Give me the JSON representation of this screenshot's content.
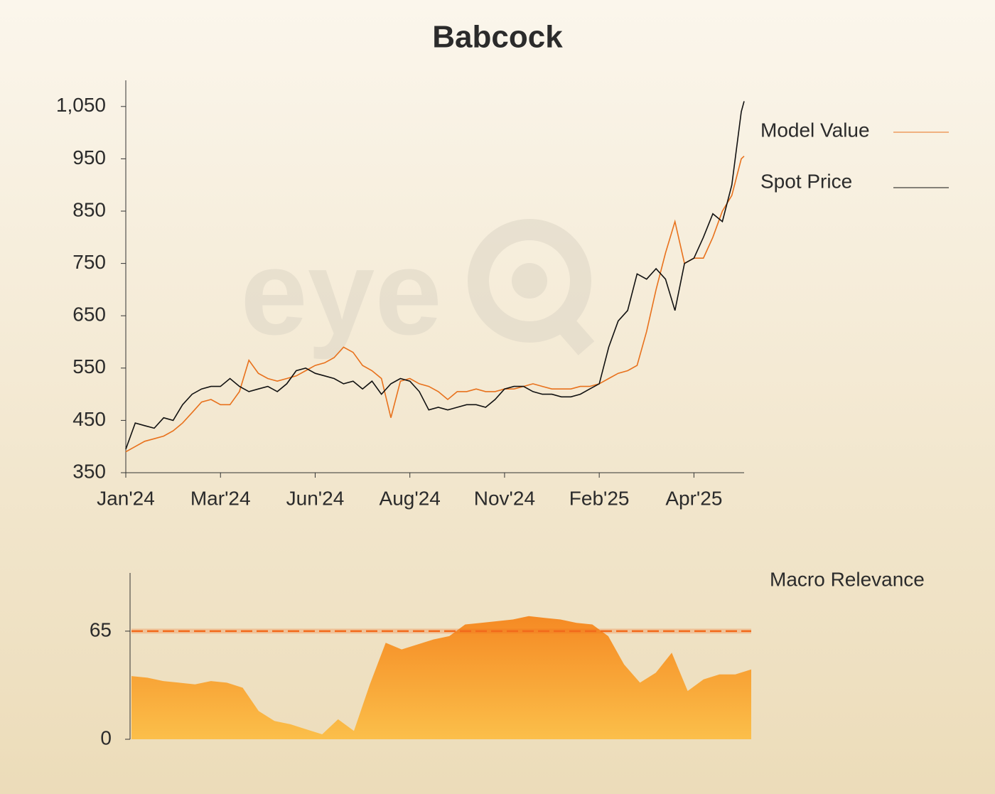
{
  "chart_data": [
    {
      "type": "line",
      "title": "Babcock",
      "watermark": "eye",
      "x": [
        0,
        0.1,
        0.2,
        0.3,
        0.4,
        0.5,
        0.6,
        0.7,
        0.8,
        0.9,
        1.0,
        1.1,
        1.2,
        1.3,
        1.4,
        1.5,
        1.6,
        1.7,
        1.8,
        1.9,
        2.0,
        2.1,
        2.2,
        2.3,
        2.4,
        2.5,
        2.6,
        2.7,
        2.8,
        2.9,
        3.0,
        3.1,
        3.2,
        3.3,
        3.4,
        3.5,
        3.6,
        3.7,
        3.8,
        3.9,
        4.0,
        4.1,
        4.2,
        4.3,
        4.4,
        4.5,
        4.6,
        4.7,
        4.8,
        4.9,
        5.0,
        5.1,
        5.2,
        5.3,
        5.4,
        5.5,
        5.6,
        5.7,
        5.8,
        5.9,
        6.0,
        6.1,
        6.2,
        6.3,
        6.4,
        6.5,
        6.53
      ],
      "series": [
        {
          "name": "Model Value",
          "color": "#e8711c",
          "values": [
            390,
            400,
            410,
            415,
            420,
            430,
            445,
            465,
            485,
            490,
            480,
            480,
            505,
            565,
            540,
            530,
            525,
            530,
            535,
            545,
            555,
            560,
            570,
            590,
            580,
            555,
            545,
            530,
            455,
            525,
            530,
            520,
            515,
            505,
            490,
            505,
            505,
            510,
            505,
            505,
            510,
            510,
            515,
            520,
            515,
            510,
            510,
            510,
            515,
            515,
            520,
            530,
            540,
            545,
            555,
            620,
            700,
            770,
            830,
            750,
            760,
            760,
            800,
            850,
            880,
            950,
            955
          ]
        },
        {
          "name": "Spot Price",
          "color": "#111111",
          "values": [
            395,
            445,
            440,
            435,
            455,
            450,
            480,
            500,
            510,
            515,
            515,
            530,
            515,
            505,
            510,
            515,
            505,
            520,
            545,
            550,
            540,
            535,
            530,
            520,
            525,
            510,
            525,
            500,
            520,
            530,
            525,
            505,
            470,
            475,
            470,
            475,
            480,
            480,
            475,
            490,
            510,
            515,
            515,
            505,
            500,
            500,
            495,
            495,
            500,
            510,
            520,
            590,
            640,
            660,
            730,
            720,
            740,
            720,
            660,
            750,
            760,
            800,
            845,
            830,
            900,
            1040,
            1060
          ]
        }
      ],
      "xlim": [
        0,
        6.53
      ],
      "xticks": [
        {
          "value": 0,
          "label": "Jan'24"
        },
        {
          "value": 1,
          "label": "Mar'24"
        },
        {
          "value": 2,
          "label": "Jun'24"
        },
        {
          "value": 3,
          "label": "Aug'24"
        },
        {
          "value": 4,
          "label": "Nov'24"
        },
        {
          "value": 5,
          "label": "Feb'25"
        },
        {
          "value": 6,
          "label": "Apr'25"
        }
      ],
      "ylim": [
        350,
        1100
      ],
      "yticks": [
        350,
        450,
        550,
        650,
        750,
        850,
        950,
        {
          "value": 1050,
          "label": "1,050"
        }
      ]
    },
    {
      "type": "area",
      "title": "Macro Relevance",
      "color": "#f7a032",
      "values": [
        38,
        37,
        35,
        34,
        33,
        35,
        34,
        31,
        17,
        11,
        9,
        6,
        3,
        12,
        5,
        33,
        58,
        54,
        57,
        60,
        62,
        69,
        70,
        71,
        72,
        74,
        73,
        72,
        70,
        69,
        62,
        45,
        34,
        40,
        52,
        29,
        36,
        39,
        39,
        42
      ],
      "ylim": [
        0,
        100
      ],
      "yticks": [
        0,
        65
      ],
      "threshold": 65,
      "threshold_color": "#f26a1b"
    }
  ]
}
